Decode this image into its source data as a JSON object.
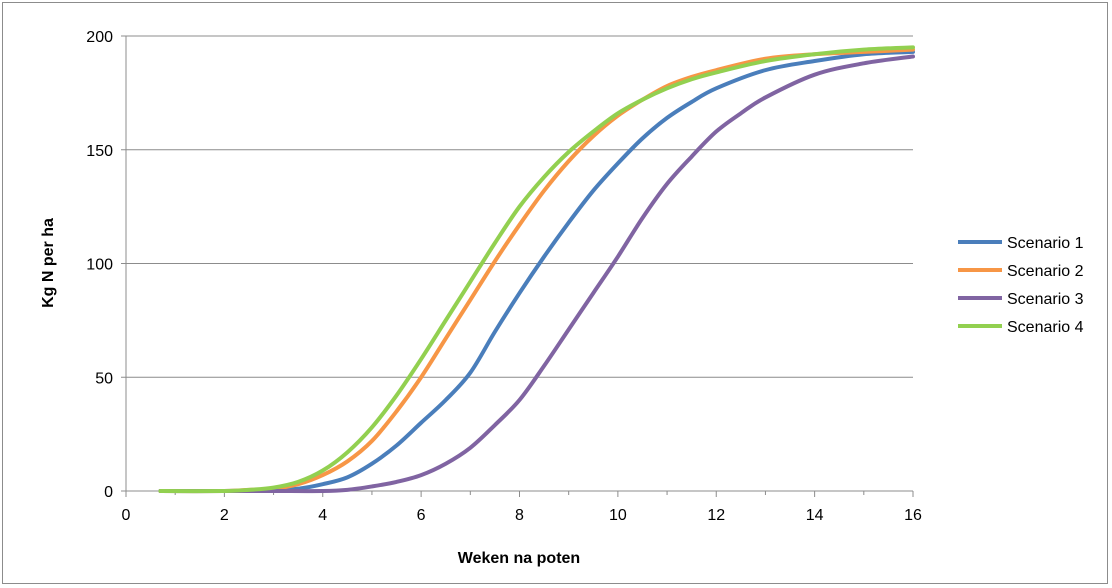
{
  "chart_data": {
    "type": "line",
    "title": "",
    "xlabel": "Weken na poten",
    "ylabel": "Kg N per ha",
    "xlim": [
      0,
      16
    ],
    "ylim": [
      0,
      200
    ],
    "xticks": [
      0,
      2,
      4,
      6,
      8,
      10,
      12,
      14,
      16
    ],
    "yticks": [
      0,
      50,
      100,
      150,
      200
    ],
    "grid": "horizontal",
    "legend_position": "right",
    "series": [
      {
        "name": "Scenario 1",
        "color": "#4a7ebb",
        "x": [
          0.7,
          2,
          3,
          3.5,
          4,
          4.5,
          5,
          5.5,
          6,
          6.5,
          7,
          7.5,
          8,
          8.5,
          9,
          9.5,
          10,
          10.5,
          11,
          11.5,
          12,
          13,
          14,
          15,
          16
        ],
        "y": [
          0,
          0,
          0.5,
          1,
          3,
          6,
          12,
          20,
          30,
          40,
          52,
          70,
          87,
          103,
          118,
          132,
          144,
          155,
          164,
          171,
          177,
          185,
          189,
          192,
          193
        ]
      },
      {
        "name": "Scenario 2",
        "color": "#f79646",
        "x": [
          0.7,
          2,
          2.5,
          3,
          3.5,
          4,
          4.5,
          5,
          5.5,
          6,
          6.5,
          7,
          7.5,
          8,
          8.5,
          9,
          9.5,
          10,
          10.5,
          11,
          11.5,
          12,
          13,
          14,
          15,
          16
        ],
        "y": [
          0,
          0,
          0.5,
          1,
          3,
          7,
          13,
          22,
          35,
          50,
          67,
          84,
          101,
          117,
          132,
          145,
          156,
          165,
          172,
          178,
          182,
          185,
          190,
          192,
          193,
          194
        ]
      },
      {
        "name": "Scenario 3",
        "color": "#8064a2",
        "x": [
          0.7,
          2,
          3,
          4,
          4.5,
          5,
          5.5,
          6,
          6.5,
          7,
          7.5,
          8,
          8.5,
          9,
          9.5,
          10,
          10.5,
          11,
          11.5,
          12,
          12.5,
          13,
          14,
          15,
          16
        ],
        "y": [
          0,
          0,
          0,
          0,
          0.5,
          2,
          4,
          7,
          12,
          19,
          29,
          40,
          55,
          71,
          87,
          103,
          120,
          135,
          147,
          158,
          166,
          173,
          183,
          188,
          191
        ]
      },
      {
        "name": "Scenario 4",
        "color": "#92d050",
        "x": [
          0.7,
          2,
          2.5,
          3,
          3.5,
          4,
          4.5,
          5,
          5.5,
          6,
          6.5,
          7,
          7.5,
          8,
          8.5,
          9,
          9.5,
          10,
          10.5,
          11,
          11.5,
          12,
          13,
          14,
          15,
          16
        ],
        "y": [
          0,
          0,
          0.5,
          1.5,
          4,
          9,
          17,
          28,
          42,
          58,
          75,
          92,
          109,
          125,
          138,
          149,
          158,
          166,
          172,
          177,
          181,
          184,
          189,
          192,
          194,
          195
        ]
      }
    ]
  }
}
